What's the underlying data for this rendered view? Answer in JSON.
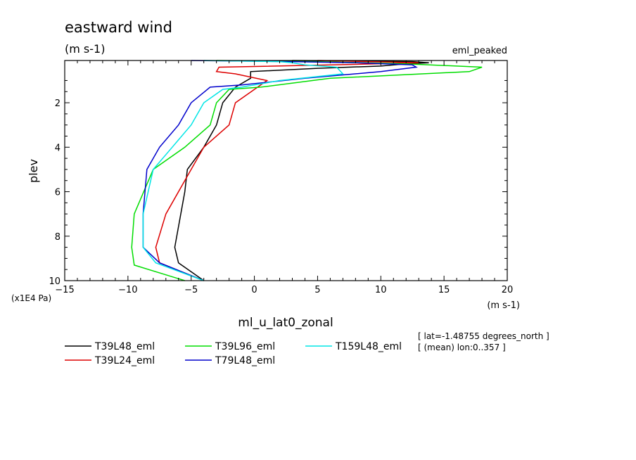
{
  "chart_data": {
    "type": "line",
    "title": "eastward wind",
    "title_units": "(m s-1)",
    "experiment": "eml_peaked",
    "xlabel": "ml_u_lat0_zonal",
    "xunits": "(m s-1)",
    "ylabel": "plev",
    "yunits": "(x1E4 Pa)",
    "xlim": [
      -15,
      20
    ],
    "ylim": [
      10,
      0.1
    ],
    "x_ticks": [
      -15,
      -10,
      -5,
      0,
      5,
      10,
      15,
      20
    ],
    "y_ticks": [
      2,
      4,
      6,
      8,
      10
    ],
    "info_lines": [
      "[ lat=-1.48755 degrees_north ]",
      "[ (mean) lon:0..357 ]"
    ],
    "series": [
      {
        "name": "T39L48_eml",
        "color": "#000000",
        "points": [
          [
            -4.0,
            10.0
          ],
          [
            -6.0,
            9.2
          ],
          [
            -6.3,
            8.5
          ],
          [
            -5.5,
            6.0
          ],
          [
            -5.3,
            5.0
          ],
          [
            -4.0,
            4.0
          ],
          [
            -3.0,
            3.0
          ],
          [
            -2.5,
            2.0
          ],
          [
            -1.5,
            1.3
          ],
          [
            -0.3,
            0.9
          ],
          [
            -0.3,
            0.6
          ],
          [
            5.0,
            0.45
          ],
          [
            10.0,
            0.35
          ],
          [
            12.0,
            0.25
          ],
          [
            13.8,
            0.2
          ],
          [
            12.5,
            0.15
          ],
          [
            3.0,
            0.1
          ]
        ]
      },
      {
        "name": "T39L24_eml",
        "color": "#dd0000",
        "points": [
          [
            -4.0,
            10.0
          ],
          [
            -7.5,
            9.2
          ],
          [
            -7.8,
            8.5
          ],
          [
            -7.0,
            7.0
          ],
          [
            -5.5,
            5.5
          ],
          [
            -4.0,
            4.0
          ],
          [
            -2.0,
            3.0
          ],
          [
            -1.5,
            2.0
          ],
          [
            0.5,
            1.2
          ],
          [
            1.0,
            1.0
          ],
          [
            -1.5,
            0.7
          ],
          [
            -3.0,
            0.6
          ],
          [
            -2.8,
            0.4
          ],
          [
            6.0,
            0.3
          ],
          [
            13.0,
            0.2
          ],
          [
            5.0,
            0.1
          ]
        ]
      },
      {
        "name": "T39L96_eml",
        "color": "#00dd00",
        "points": [
          [
            -5.5,
            10.0
          ],
          [
            -9.5,
            9.3
          ],
          [
            -9.7,
            8.5
          ],
          [
            -9.5,
            7.0
          ],
          [
            -8.0,
            5.0
          ],
          [
            -5.5,
            4.0
          ],
          [
            -3.5,
            3.0
          ],
          [
            -3.0,
            2.0
          ],
          [
            -2.0,
            1.4
          ],
          [
            0.5,
            1.3
          ],
          [
            6.0,
            0.9
          ],
          [
            17.0,
            0.6
          ],
          [
            18.0,
            0.4
          ],
          [
            12.0,
            0.25
          ],
          [
            5.0,
            0.15
          ],
          [
            -3.0,
            0.1
          ]
        ]
      },
      {
        "name": "T79L48_eml",
        "color": "#0000cc",
        "points": [
          [
            -4.0,
            10.0
          ],
          [
            -7.5,
            9.2
          ],
          [
            -8.8,
            8.5
          ],
          [
            -8.8,
            7.0
          ],
          [
            -8.5,
            5.0
          ],
          [
            -7.5,
            4.0
          ],
          [
            -6.0,
            3.0
          ],
          [
            -5.0,
            2.0
          ],
          [
            -3.5,
            1.3
          ],
          [
            -1.0,
            1.2
          ],
          [
            4.0,
            0.9
          ],
          [
            10.0,
            0.6
          ],
          [
            12.8,
            0.4
          ],
          [
            12.5,
            0.3
          ],
          [
            8.0,
            0.2
          ],
          [
            3.0,
            0.15
          ],
          [
            -5.0,
            0.1
          ]
        ]
      },
      {
        "name": "T159L48_eml",
        "color": "#00e5e5",
        "points": [
          [
            -4.0,
            10.0
          ],
          [
            -7.8,
            9.2
          ],
          [
            -8.8,
            8.5
          ],
          [
            -8.8,
            7.0
          ],
          [
            -8.0,
            5.0
          ],
          [
            -6.5,
            4.0
          ],
          [
            -5.0,
            3.0
          ],
          [
            -4.0,
            2.0
          ],
          [
            -2.5,
            1.4
          ],
          [
            -1.0,
            1.3
          ],
          [
            2.0,
            1.0
          ],
          [
            7.0,
            0.7
          ],
          [
            6.5,
            0.4
          ],
          [
            4.0,
            0.3
          ],
          [
            3.0,
            0.2
          ],
          [
            2.0,
            0.15
          ],
          [
            -4.0,
            0.1
          ]
        ]
      }
    ]
  }
}
